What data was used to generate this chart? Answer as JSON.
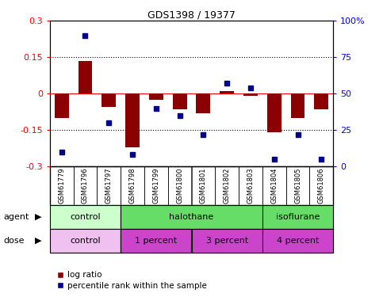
{
  "title": "GDS1398 / 19377",
  "samples": [
    "GSM61779",
    "GSM61796",
    "GSM61797",
    "GSM61798",
    "GSM61799",
    "GSM61800",
    "GSM61801",
    "GSM61802",
    "GSM61803",
    "GSM61804",
    "GSM61805",
    "GSM61806"
  ],
  "log_ratio": [
    -0.1,
    0.135,
    -0.055,
    -0.22,
    -0.025,
    -0.065,
    -0.08,
    0.01,
    -0.01,
    -0.16,
    -0.1,
    -0.065
  ],
  "percentile_rank": [
    10,
    90,
    30,
    8,
    40,
    35,
    22,
    57,
    54,
    5,
    22,
    5
  ],
  "ylim_left": [
    -0.3,
    0.3
  ],
  "ylim_right": [
    0,
    100
  ],
  "yticks_left": [
    -0.3,
    -0.15,
    0,
    0.15,
    0.3
  ],
  "yticks_right": [
    0,
    25,
    50,
    75,
    100
  ],
  "bar_color": "#8B0000",
  "dot_color": "#00008B",
  "hline_color": "red",
  "dotted_color": "black",
  "agent_groups": [
    {
      "label": "control",
      "start": 0,
      "end": 3
    },
    {
      "label": "halothane",
      "start": 3,
      "end": 9
    },
    {
      "label": "isoflurane",
      "start": 9,
      "end": 12
    }
  ],
  "agent_colors": [
    "#ccffcc",
    "#66dd66",
    "#66dd66"
  ],
  "dose_groups": [
    {
      "label": "control",
      "start": 0,
      "end": 3
    },
    {
      "label": "1 percent",
      "start": 3,
      "end": 6
    },
    {
      "label": "3 percent",
      "start": 6,
      "end": 9
    },
    {
      "label": "4 percent",
      "start": 9,
      "end": 12
    }
  ],
  "dose_colors": [
    "#f0c0f0",
    "#cc44cc",
    "#cc44cc",
    "#cc44cc"
  ],
  "legend_bar_label": "log ratio",
  "legend_dot_label": "percentile rank within the sample",
  "xlabel_agent": "agent",
  "xlabel_dose": "dose",
  "background_color": "#ffffff",
  "tick_label_area_color": "#c8c8c8"
}
